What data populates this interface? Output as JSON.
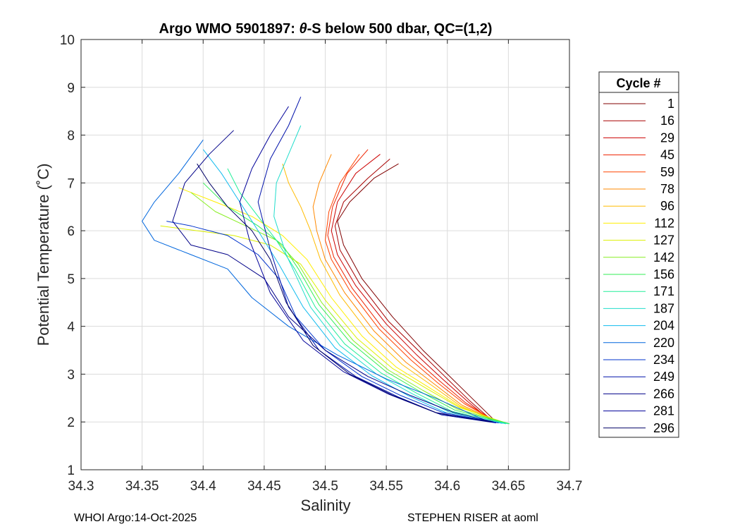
{
  "chart_data": {
    "type": "line",
    "title_prefix": "Argo WMO 5901897: ",
    "title_theta": "θ",
    "title_suffix": "-S below 500 dbar,  QC=(1,2)",
    "xlabel": "Salinity",
    "ylabel": "Potential Temperature (˚C)",
    "xlim": [
      34.3,
      34.7
    ],
    "ylim": [
      1,
      10
    ],
    "xticks": [
      "34.3",
      "34.35",
      "34.4",
      "34.45",
      "34.5",
      "34.55",
      "34.6",
      "34.65",
      "34.7"
    ],
    "yticks": [
      "1",
      "2",
      "3",
      "4",
      "5",
      "6",
      "7",
      "8",
      "9",
      "10"
    ],
    "grid": true,
    "legend_title": "Cycle #",
    "legend_position": "right",
    "series": [
      {
        "name": "1",
        "color": "#800000",
        "x": [
          34.56,
          34.54,
          34.52,
          34.51,
          34.515,
          34.53,
          34.555,
          34.58,
          34.6,
          34.62,
          34.64
        ],
        "y": [
          7.4,
          7.1,
          6.6,
          6.2,
          5.7,
          5.0,
          4.2,
          3.5,
          3.0,
          2.5,
          2.0
        ]
      },
      {
        "name": "16",
        "color": "#a80000",
        "x": [
          34.553,
          34.535,
          34.515,
          34.508,
          34.512,
          34.528,
          34.552,
          34.578,
          34.598,
          34.618,
          34.638
        ],
        "y": [
          7.5,
          7.1,
          6.6,
          6.1,
          5.6,
          4.9,
          4.1,
          3.45,
          2.95,
          2.45,
          2.0
        ]
      },
      {
        "name": "29",
        "color": "#cc0000",
        "x": [
          34.545,
          34.525,
          34.51,
          34.505,
          34.51,
          34.525,
          34.55,
          34.575,
          34.596,
          34.617,
          34.637
        ],
        "y": [
          7.6,
          7.2,
          6.6,
          6.0,
          5.5,
          4.85,
          4.05,
          3.4,
          2.9,
          2.42,
          2.0
        ]
      },
      {
        "name": "45",
        "color": "#ee2200",
        "x": [
          34.535,
          34.518,
          34.506,
          34.502,
          34.507,
          34.522,
          34.546,
          34.572,
          34.594,
          34.615,
          34.64
        ],
        "y": [
          7.7,
          7.2,
          6.5,
          5.9,
          5.45,
          4.8,
          4.0,
          3.35,
          2.85,
          2.4,
          2.0
        ]
      },
      {
        "name": "59",
        "color": "#ff4400",
        "x": [
          34.528,
          34.512,
          34.503,
          34.5,
          34.505,
          34.52,
          34.544,
          34.57,
          34.592,
          34.614,
          34.641
        ],
        "y": [
          7.6,
          7.0,
          6.4,
          5.8,
          5.4,
          4.75,
          3.95,
          3.3,
          2.82,
          2.38,
          2.0
        ]
      },
      {
        "name": "78",
        "color": "#ff8800",
        "x": [
          34.505,
          34.495,
          34.49,
          34.493,
          34.5,
          34.516,
          34.54,
          34.566,
          34.59,
          34.612,
          34.642
        ],
        "y": [
          7.6,
          7.0,
          6.5,
          6.0,
          5.4,
          4.7,
          3.9,
          3.25,
          2.78,
          2.35,
          2.0
        ]
      },
      {
        "name": "96",
        "color": "#ffbb00",
        "x": [
          34.465,
          34.47,
          34.48,
          34.488,
          34.496,
          34.512,
          34.536,
          34.563,
          34.588,
          34.611,
          34.643
        ],
        "y": [
          7.4,
          7.0,
          6.5,
          6.0,
          5.4,
          4.65,
          3.85,
          3.2,
          2.75,
          2.33,
          1.99
        ]
      },
      {
        "name": "112",
        "color": "#ffee00",
        "x": [
          34.38,
          34.41,
          34.44,
          34.465,
          34.485,
          34.505,
          34.53,
          34.558,
          34.585,
          34.61,
          34.644
        ],
        "y": [
          6.9,
          6.6,
          6.3,
          5.9,
          5.4,
          4.6,
          3.8,
          3.15,
          2.72,
          2.32,
          1.99
        ]
      },
      {
        "name": "127",
        "color": "#ddf000",
        "x": [
          34.365,
          34.395,
          34.425,
          34.455,
          34.48,
          34.5,
          34.526,
          34.555,
          34.583,
          34.61,
          34.648
        ],
        "y": [
          6.1,
          6.0,
          5.9,
          5.7,
          5.3,
          4.55,
          3.75,
          3.12,
          2.7,
          2.3,
          1.98
        ]
      },
      {
        "name": "142",
        "color": "#88ee22",
        "x": [
          34.39,
          34.41,
          34.435,
          34.46,
          34.478,
          34.497,
          34.523,
          34.552,
          34.58,
          34.608,
          34.65
        ],
        "y": [
          6.8,
          6.4,
          6.1,
          5.8,
          5.3,
          4.5,
          3.7,
          3.08,
          2.66,
          2.27,
          1.97
        ]
      },
      {
        "name": "156",
        "color": "#33ee55",
        "x": [
          34.4,
          34.42,
          34.445,
          34.465,
          34.478,
          34.495,
          34.52,
          34.55,
          34.578,
          34.606,
          34.651
        ],
        "y": [
          7.0,
          6.5,
          6.1,
          5.7,
          5.2,
          4.45,
          3.68,
          3.05,
          2.63,
          2.25,
          1.96
        ]
      },
      {
        "name": "171",
        "color": "#22ee99",
        "x": [
          34.42,
          34.43,
          34.445,
          34.46,
          34.475,
          34.492,
          34.516,
          34.546,
          34.575,
          34.604,
          34.65
        ],
        "y": [
          7.3,
          6.8,
          6.3,
          5.8,
          5.2,
          4.4,
          3.63,
          3.02,
          2.6,
          2.22,
          1.96
        ]
      },
      {
        "name": "187",
        "color": "#22ddcc",
        "x": [
          34.48,
          34.47,
          34.46,
          34.458,
          34.468,
          34.488,
          34.512,
          34.542,
          34.572,
          34.602,
          34.648
        ],
        "y": [
          8.2,
          7.6,
          7.0,
          6.3,
          5.5,
          4.4,
          3.6,
          3.0,
          2.58,
          2.2,
          1.96
        ]
      },
      {
        "name": "204",
        "color": "#11bbee",
        "x": [
          34.4,
          34.415,
          34.43,
          34.445,
          34.462,
          34.482,
          34.508,
          34.538,
          34.568,
          34.6,
          34.645
        ],
        "y": [
          7.7,
          7.2,
          6.6,
          6.0,
          5.3,
          4.4,
          3.55,
          2.97,
          2.55,
          2.18,
          1.97
        ]
      },
      {
        "name": "220",
        "color": "#0066dd",
        "x": [
          34.4,
          34.38,
          34.36,
          34.35,
          34.36,
          34.39,
          34.42,
          34.44,
          34.47,
          34.51,
          34.55,
          34.59,
          34.63
        ],
        "y": [
          7.9,
          7.2,
          6.6,
          6.2,
          5.8,
          5.5,
          5.2,
          4.6,
          4.0,
          3.4,
          2.9,
          2.5,
          2.05
        ]
      },
      {
        "name": "234",
        "color": "#0033cc",
        "x": [
          34.37,
          34.39,
          34.42,
          34.445,
          34.462,
          34.476,
          34.5,
          34.53,
          34.562,
          34.596,
          34.642
        ],
        "y": [
          6.2,
          6.1,
          5.9,
          5.5,
          5.0,
          4.2,
          3.5,
          2.95,
          2.55,
          2.2,
          1.98
        ]
      },
      {
        "name": "249",
        "color": "#0011aa",
        "x": [
          34.48,
          34.47,
          34.455,
          34.445,
          34.455,
          34.47,
          34.495,
          34.525,
          34.56,
          34.595,
          34.64
        ],
        "y": [
          8.8,
          8.2,
          7.5,
          6.6,
          5.6,
          4.4,
          3.5,
          2.95,
          2.52,
          2.15,
          1.98
        ]
      },
      {
        "name": "266",
        "color": "#000088",
        "x": [
          34.425,
          34.405,
          34.385,
          34.375,
          34.39,
          34.42,
          34.45,
          34.47,
          34.5,
          34.535,
          34.57,
          34.605,
          34.638
        ],
        "y": [
          8.1,
          7.6,
          7.0,
          6.2,
          5.7,
          5.5,
          5.0,
          4.2,
          3.5,
          2.95,
          2.55,
          2.2,
          2.0
        ]
      },
      {
        "name": "281",
        "color": "#000099",
        "x": [
          34.47,
          34.455,
          34.44,
          34.43,
          34.438,
          34.455,
          34.482,
          34.515,
          34.552,
          34.59,
          34.637
        ],
        "y": [
          8.6,
          8.0,
          7.3,
          6.6,
          5.8,
          4.7,
          3.7,
          3.05,
          2.58,
          2.2,
          2.0
        ]
      },
      {
        "name": "296",
        "color": "#000066",
        "x": [
          34.395,
          34.405,
          34.42,
          34.44,
          34.455,
          34.468,
          34.49,
          34.52,
          34.555,
          34.592,
          34.636
        ],
        "y": [
          7.4,
          7.0,
          6.5,
          6.0,
          5.4,
          4.5,
          3.6,
          3.0,
          2.56,
          2.18,
          2.0
        ]
      }
    ]
  },
  "footer": {
    "left": "WHOI Argo:14-Oct-2025",
    "right": "STEPHEN RISER at aoml"
  }
}
